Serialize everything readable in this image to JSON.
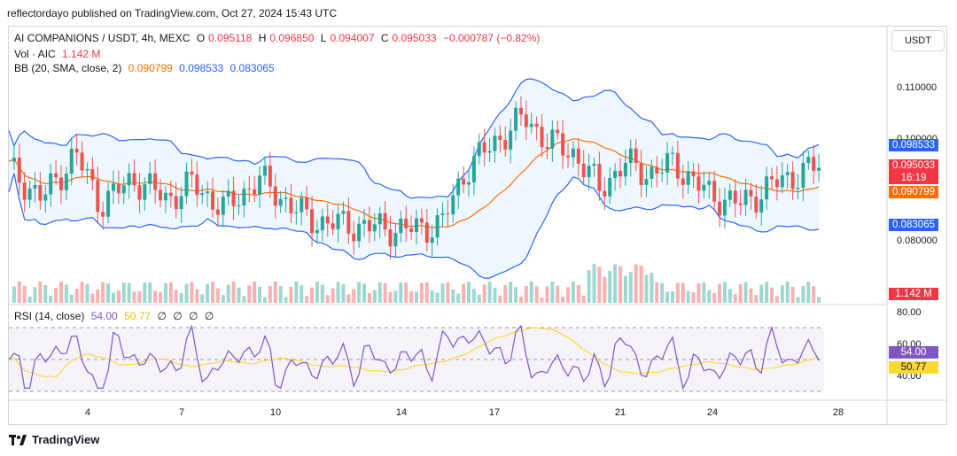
{
  "header": {
    "published": "reflectordayo published on TradingView.com, Oct 27, 2024 15:43 UTC"
  },
  "symbol": {
    "title": "AI COMPANIONS / USDT, 4h, MEXC",
    "o_label": "O",
    "o": "0.095118",
    "h_label": "H",
    "h": "0.096850",
    "l_label": "L",
    "l": "0.094007",
    "c_label": "C",
    "c": "0.095033",
    "change": "−0.000787 (−0.82%)"
  },
  "volume": {
    "label": "Vol · AIC",
    "value": "1.142 M"
  },
  "bb": {
    "label": "BB (20, SMA, close, 2)",
    "basis": "0.090799",
    "upper": "0.098533",
    "lower": "0.083065"
  },
  "rsi": {
    "label": "RSI (14, close)",
    "value": "54.00",
    "ma": "50.77",
    "extra": [
      "∅",
      "∅",
      "∅",
      "∅"
    ]
  },
  "currency_button": "USDT",
  "price_axis": [
    "0.110000",
    "0.100000",
    "0.080000"
  ],
  "price_tags": {
    "upper": "0.098533",
    "close": "0.095033",
    "countdown": "16:19",
    "basis": "0.090799",
    "lower": "0.083065",
    "volume": "1.142 M"
  },
  "rsi_axis": [
    "80.00",
    "60.00",
    "40.00"
  ],
  "rsi_tags": {
    "rsi": "54.00",
    "ma": "50.77"
  },
  "time_axis": [
    "4",
    "7",
    "10",
    "14",
    "17",
    "21",
    "24",
    "28"
  ],
  "footer": {
    "brand": "TradingView"
  },
  "colors": {
    "up": "#26a69a",
    "down": "#ef5350",
    "bb_band": "#2962ff",
    "bb_basis": "#ff6d00",
    "rsi": "#7e57c2",
    "rsi_ma": "#fdd835"
  }
}
